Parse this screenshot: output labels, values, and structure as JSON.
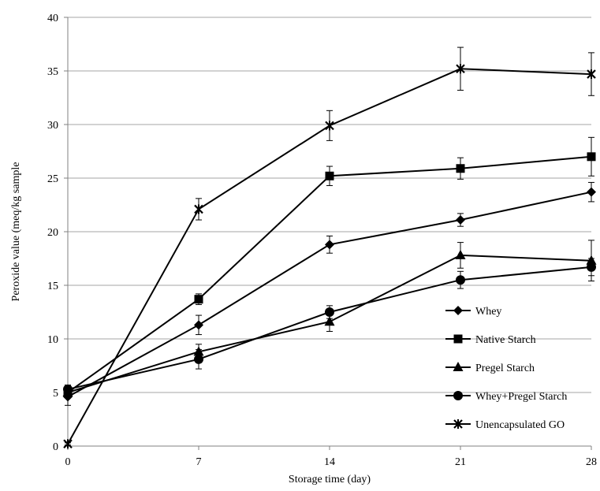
{
  "chart_data": {
    "type": "line",
    "title": "",
    "xlabel": "Storage time (day)",
    "ylabel": "Peroxide value (meq/kg sample",
    "x": [
      0,
      7,
      14,
      21,
      28
    ],
    "xlim": [
      0,
      28
    ],
    "ylim": [
      0,
      40
    ],
    "yticks": [
      0,
      5,
      10,
      15,
      20,
      25,
      30,
      35,
      40
    ],
    "grid": "horizontal",
    "legend_position": "bottom-right",
    "series": [
      {
        "name": "Whey",
        "marker": "diamond",
        "values": [
          4.6,
          11.3,
          18.8,
          21.1,
          23.7
        ],
        "errors": [
          0.8,
          0.9,
          0.8,
          0.6,
          0.9
        ]
      },
      {
        "name": "Native Starch",
        "marker": "square",
        "values": [
          5.0,
          13.7,
          25.2,
          25.9,
          27.0
        ],
        "errors": [
          0.4,
          0.5,
          0.9,
          1.0,
          1.8
        ]
      },
      {
        "name": "Pregel Starch",
        "marker": "triangle",
        "values": [
          5.0,
          8.8,
          11.6,
          17.8,
          17.3
        ],
        "errors": [
          0.5,
          0.7,
          0.9,
          1.2,
          1.9
        ]
      },
      {
        "name": "Whey+Pregel Starch",
        "marker": "circle",
        "values": [
          5.3,
          8.1,
          12.5,
          15.5,
          16.7
        ],
        "errors": [
          0.4,
          0.9,
          0.6,
          0.8,
          0.8
        ]
      },
      {
        "name": "Unencapsulated GO",
        "marker": "star",
        "values": [
          0.2,
          22.1,
          29.9,
          35.2,
          34.7
        ],
        "errors": [
          0.1,
          1.0,
          1.4,
          2.0,
          2.0
        ]
      }
    ],
    "colors": {
      "line": "#000000",
      "grid": "#a6a6a6",
      "axis": "#808080"
    }
  }
}
